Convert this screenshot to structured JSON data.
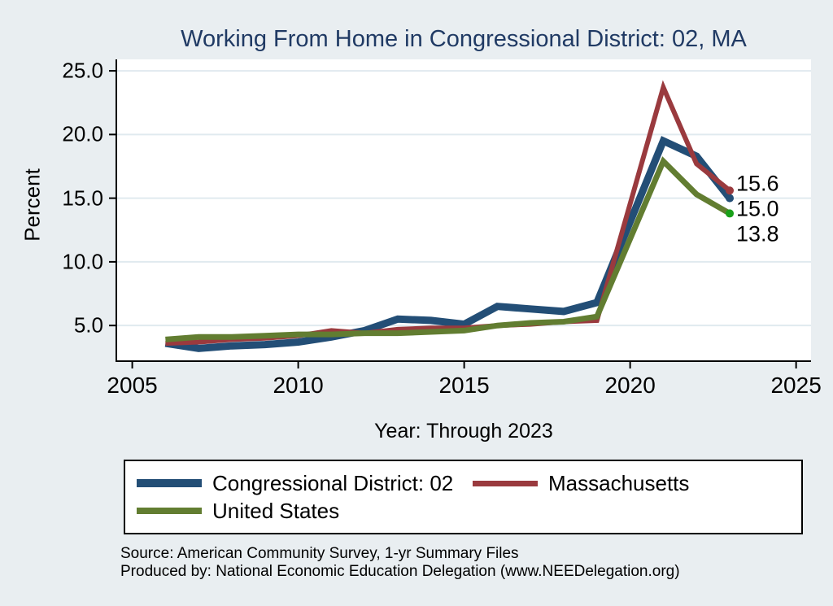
{
  "chart_data": {
    "type": "line",
    "title": "Working From Home in Congressional District: 02, MA",
    "xlabel": "Year: Through 2023",
    "ylabel": "Percent",
    "x": [
      2006,
      2007,
      2008,
      2009,
      2010,
      2011,
      2012,
      2013,
      2014,
      2015,
      2016,
      2017,
      2018,
      2019,
      2021,
      2022,
      2023
    ],
    "x_ticks": [
      2005,
      2010,
      2015,
      2020,
      2025
    ],
    "y_ticks": [
      5.0,
      10.0,
      15.0,
      20.0,
      25.0
    ],
    "xlim": [
      2004.52,
      2025.45
    ],
    "ylim": [
      2.2,
      25.9
    ],
    "grid": true,
    "legend_position": "bottom",
    "series": [
      {
        "name": "Congressional District: 02",
        "color": "#234e76",
        "line_width": 9,
        "marker_color": "#234e76",
        "values": [
          3.6,
          3.2,
          3.4,
          3.5,
          3.7,
          4.1,
          4.6,
          5.5,
          5.4,
          5.1,
          6.5,
          6.3,
          6.1,
          6.8,
          19.5,
          18.3,
          15.0
        ],
        "end_label": "15.0"
      },
      {
        "name": "Massachusetts",
        "color": "#9a3a3e",
        "line_width": 6,
        "marker_color": "#9a3a3e",
        "values": [
          3.6,
          3.7,
          3.9,
          4.0,
          4.2,
          4.6,
          4.4,
          4.7,
          4.8,
          4.8,
          5.0,
          5.1,
          5.3,
          5.4,
          23.7,
          17.7,
          15.6
        ],
        "end_label": "15.6"
      },
      {
        "name": "United States",
        "color": "#627d31",
        "line_width": 7,
        "marker_color": "#19a019",
        "values": [
          3.9,
          4.1,
          4.1,
          4.2,
          4.3,
          4.3,
          4.4,
          4.4,
          4.5,
          4.6,
          5.0,
          5.2,
          5.3,
          5.7,
          17.9,
          15.3,
          13.8
        ],
        "end_label": "13.8"
      }
    ]
  },
  "footer": {
    "source": "Source: American Community Survey, 1-yr Summary Files",
    "produced_by": "Produced by: National Economic Education Delegation (www.NEEDelegation.org)"
  },
  "colors": {
    "background": "#e9eef1",
    "plot_background": "#ffffff",
    "title": "#203a64",
    "gridline": "#e0eaef",
    "axis": "#000000"
  }
}
